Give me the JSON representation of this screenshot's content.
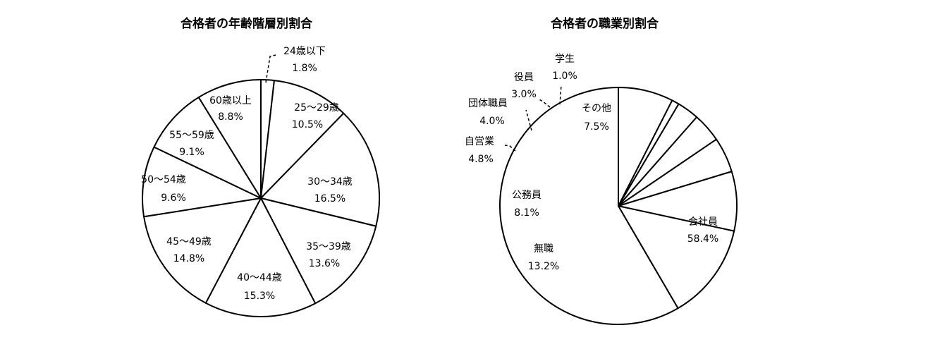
{
  "chart_data": [
    {
      "type": "pie",
      "title": "合格者の年齢階層別割合",
      "categories": [
        "24歳以下",
        "25～29歳",
        "30～34歳",
        "35～39歳",
        "40～44歳",
        "45～49歳",
        "50～54歳",
        "55～59歳",
        "60歳以上"
      ],
      "value_labels": [
        "1.8%",
        "10.5%",
        "16.5%",
        "13.6%",
        "15.3%",
        "14.8%",
        "9.6%",
        "9.1%",
        "8.8%"
      ],
      "values": [
        1.8,
        10.5,
        16.5,
        13.6,
        15.3,
        14.8,
        9.6,
        9.1,
        8.8
      ]
    },
    {
      "type": "pie",
      "title": "合格者の職業別割合",
      "categories": [
        "会社員",
        "無職",
        "公務員",
        "自営業",
        "団体職員",
        "役員",
        "学生",
        "その他"
      ],
      "value_labels": [
        "58.4%",
        "13.2%",
        "8.1%",
        "4.8%",
        "4.0%",
        "3.0%",
        "1.0%",
        "7.5%"
      ],
      "values": [
        58.4,
        13.2,
        8.1,
        4.8,
        4.0,
        3.0,
        1.0,
        7.5
      ]
    }
  ]
}
